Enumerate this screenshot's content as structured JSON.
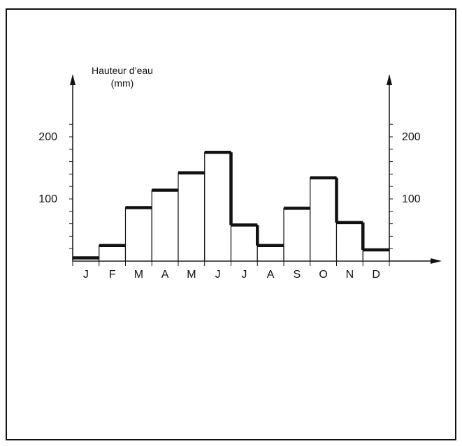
{
  "chart_data": {
    "type": "bar",
    "ylabel": "Hauteur d’eau",
    "yunit": "(mm)",
    "categories": [
      "J",
      "F",
      "M",
      "A",
      "M",
      "J",
      "J",
      "A",
      "S",
      "O",
      "N",
      "D"
    ],
    "values": [
      5,
      25,
      86,
      114,
      142,
      175,
      58,
      25,
      85,
      134,
      62,
      18
    ],
    "ylim": [
      0,
      240
    ],
    "yticks_major": [
      100,
      200
    ],
    "ytick_minor_step": 20,
    "right_axis": true,
    "grid": false,
    "colors": {
      "bar_fill": "#ffffff",
      "stroke": "#111111"
    }
  }
}
